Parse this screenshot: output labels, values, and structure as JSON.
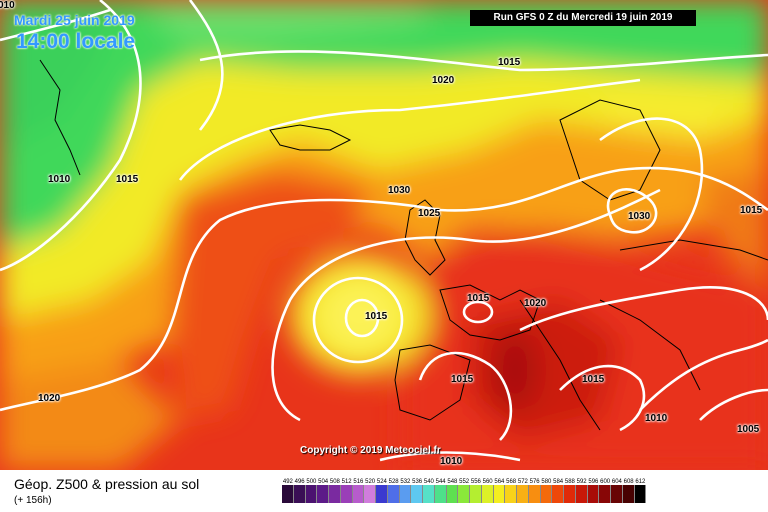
{
  "header": {
    "date": "Mardi 25 juin 2019",
    "time": "14:00 locale",
    "run": "Run GFS 0 Z du Mercredi 19 juin 2019"
  },
  "map": {
    "copyright": "Copyright © 2019 Meteociel.fr",
    "isobars": [
      "010",
      "1015",
      "1020",
      "1010",
      "1015",
      "1030",
      "1025",
      "1015",
      "1015",
      "1020",
      "1030",
      "1015",
      "1015",
      "1015",
      "1020",
      "1010",
      "1005",
      "1010"
    ]
  },
  "legend": {
    "title": "Géop. Z500 & pression au sol",
    "subtitle": "(+ 156h)",
    "scale_values": [
      "492",
      "496",
      "500",
      "504",
      "508",
      "512",
      "516",
      "520",
      "524",
      "528",
      "532",
      "536",
      "540",
      "544",
      "548",
      "552",
      "556",
      "560",
      "564",
      "568",
      "572",
      "576",
      "580",
      "584",
      "588",
      "592",
      "596",
      "600",
      "604",
      "608",
      "612"
    ],
    "scale_colors": [
      "#2a0a3a",
      "#3a0f55",
      "#4b1270",
      "#5c1a88",
      "#7a2aa0",
      "#9a3fb8",
      "#b75ccc",
      "#d07ddc",
      "#3a3ad0",
      "#4f6ee8",
      "#5a9cf0",
      "#5ec8f0",
      "#56e0c8",
      "#4ee08a",
      "#5ee050",
      "#8ae83a",
      "#b4ee30",
      "#dcf028",
      "#f4ee20",
      "#f8d21a",
      "#f8b014",
      "#f88e10",
      "#f46a0c",
      "#ee480a",
      "#e02a08",
      "#c81808",
      "#a80c08",
      "#880606",
      "#680404",
      "#480202",
      "#000000"
    ]
  }
}
